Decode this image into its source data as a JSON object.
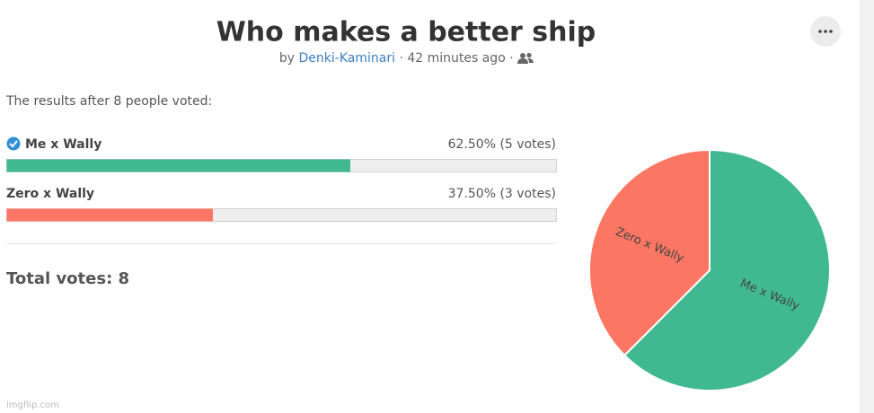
{
  "header": {
    "title": "Who makes a better ship",
    "byline": {
      "prefix": "by",
      "author": "Denki-Kaminari",
      "time": "· 42 minutes ago ·"
    }
  },
  "results": {
    "intro": "The results after 8 people voted:",
    "options": [
      {
        "name": "Me x Wally",
        "percent": 62.5,
        "label": "62.50% (5 votes)",
        "color": "#40b991"
      },
      {
        "name": "Zero x Wally",
        "percent": 37.5,
        "label": "37.50% (3 votes)",
        "color": "#fb7763"
      }
    ],
    "total": "Total votes: 8"
  },
  "watermark": "imgflip.com"
}
